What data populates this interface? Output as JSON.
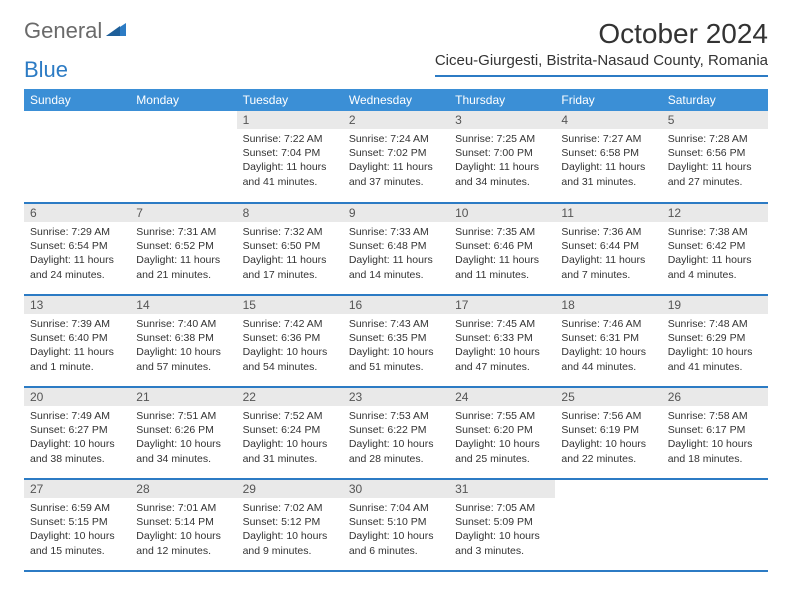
{
  "brand": {
    "part1": "General",
    "part2": "Blue"
  },
  "title": "October 2024",
  "location": "Ciceu-Giurgesti, Bistrita-Nasaud County, Romania",
  "colors": {
    "header_bg": "#3b8fd6",
    "rule": "#2c7bc4",
    "daynum_bg": "#e9e9e9",
    "text": "#333333",
    "background": "#ffffff"
  },
  "typography": {
    "month_title_fontsize": 28,
    "location_fontsize": 15,
    "dayhead_fontsize": 12,
    "daynum_fontsize": 12,
    "body_fontsize": 10.5
  },
  "dayNames": [
    "Sunday",
    "Monday",
    "Tuesday",
    "Wednesday",
    "Thursday",
    "Friday",
    "Saturday"
  ],
  "firstWeekdayIndex": 2,
  "days": [
    {
      "n": 1,
      "sunrise": "7:22 AM",
      "sunset": "7:04 PM",
      "daylight": "11 hours and 41 minutes."
    },
    {
      "n": 2,
      "sunrise": "7:24 AM",
      "sunset": "7:02 PM",
      "daylight": "11 hours and 37 minutes."
    },
    {
      "n": 3,
      "sunrise": "7:25 AM",
      "sunset": "7:00 PM",
      "daylight": "11 hours and 34 minutes."
    },
    {
      "n": 4,
      "sunrise": "7:27 AM",
      "sunset": "6:58 PM",
      "daylight": "11 hours and 31 minutes."
    },
    {
      "n": 5,
      "sunrise": "7:28 AM",
      "sunset": "6:56 PM",
      "daylight": "11 hours and 27 minutes."
    },
    {
      "n": 6,
      "sunrise": "7:29 AM",
      "sunset": "6:54 PM",
      "daylight": "11 hours and 24 minutes."
    },
    {
      "n": 7,
      "sunrise": "7:31 AM",
      "sunset": "6:52 PM",
      "daylight": "11 hours and 21 minutes."
    },
    {
      "n": 8,
      "sunrise": "7:32 AM",
      "sunset": "6:50 PM",
      "daylight": "11 hours and 17 minutes."
    },
    {
      "n": 9,
      "sunrise": "7:33 AM",
      "sunset": "6:48 PM",
      "daylight": "11 hours and 14 minutes."
    },
    {
      "n": 10,
      "sunrise": "7:35 AM",
      "sunset": "6:46 PM",
      "daylight": "11 hours and 11 minutes."
    },
    {
      "n": 11,
      "sunrise": "7:36 AM",
      "sunset": "6:44 PM",
      "daylight": "11 hours and 7 minutes."
    },
    {
      "n": 12,
      "sunrise": "7:38 AM",
      "sunset": "6:42 PM",
      "daylight": "11 hours and 4 minutes."
    },
    {
      "n": 13,
      "sunrise": "7:39 AM",
      "sunset": "6:40 PM",
      "daylight": "11 hours and 1 minute."
    },
    {
      "n": 14,
      "sunrise": "7:40 AM",
      "sunset": "6:38 PM",
      "daylight": "10 hours and 57 minutes."
    },
    {
      "n": 15,
      "sunrise": "7:42 AM",
      "sunset": "6:36 PM",
      "daylight": "10 hours and 54 minutes."
    },
    {
      "n": 16,
      "sunrise": "7:43 AM",
      "sunset": "6:35 PM",
      "daylight": "10 hours and 51 minutes."
    },
    {
      "n": 17,
      "sunrise": "7:45 AM",
      "sunset": "6:33 PM",
      "daylight": "10 hours and 47 minutes."
    },
    {
      "n": 18,
      "sunrise": "7:46 AM",
      "sunset": "6:31 PM",
      "daylight": "10 hours and 44 minutes."
    },
    {
      "n": 19,
      "sunrise": "7:48 AM",
      "sunset": "6:29 PM",
      "daylight": "10 hours and 41 minutes."
    },
    {
      "n": 20,
      "sunrise": "7:49 AM",
      "sunset": "6:27 PM",
      "daylight": "10 hours and 38 minutes."
    },
    {
      "n": 21,
      "sunrise": "7:51 AM",
      "sunset": "6:26 PM",
      "daylight": "10 hours and 34 minutes."
    },
    {
      "n": 22,
      "sunrise": "7:52 AM",
      "sunset": "6:24 PM",
      "daylight": "10 hours and 31 minutes."
    },
    {
      "n": 23,
      "sunrise": "7:53 AM",
      "sunset": "6:22 PM",
      "daylight": "10 hours and 28 minutes."
    },
    {
      "n": 24,
      "sunrise": "7:55 AM",
      "sunset": "6:20 PM",
      "daylight": "10 hours and 25 minutes."
    },
    {
      "n": 25,
      "sunrise": "7:56 AM",
      "sunset": "6:19 PM",
      "daylight": "10 hours and 22 minutes."
    },
    {
      "n": 26,
      "sunrise": "7:58 AM",
      "sunset": "6:17 PM",
      "daylight": "10 hours and 18 minutes."
    },
    {
      "n": 27,
      "sunrise": "6:59 AM",
      "sunset": "5:15 PM",
      "daylight": "10 hours and 15 minutes."
    },
    {
      "n": 28,
      "sunrise": "7:01 AM",
      "sunset": "5:14 PM",
      "daylight": "10 hours and 12 minutes."
    },
    {
      "n": 29,
      "sunrise": "7:02 AM",
      "sunset": "5:12 PM",
      "daylight": "10 hours and 9 minutes."
    },
    {
      "n": 30,
      "sunrise": "7:04 AM",
      "sunset": "5:10 PM",
      "daylight": "10 hours and 6 minutes."
    },
    {
      "n": 31,
      "sunrise": "7:05 AM",
      "sunset": "5:09 PM",
      "daylight": "10 hours and 3 minutes."
    }
  ],
  "labels": {
    "sunrise": "Sunrise:",
    "sunset": "Sunset:",
    "daylight": "Daylight:"
  }
}
